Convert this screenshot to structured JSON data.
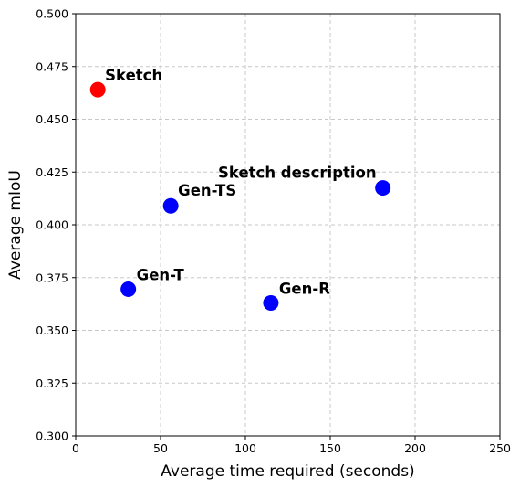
{
  "chart_data": {
    "type": "scatter",
    "title": "",
    "xlabel": "Average time required (seconds)",
    "ylabel": "Average mIoU",
    "xlim": [
      0,
      250
    ],
    "ylim": [
      0.3,
      0.5
    ],
    "xticks": [
      "0",
      "50",
      "100",
      "150",
      "200",
      "250"
    ],
    "yticks": [
      "0.300",
      "0.325",
      "0.350",
      "0.375",
      "0.400",
      "0.425",
      "0.450",
      "0.475",
      "0.500"
    ],
    "grid": true,
    "grid_style": "dashed",
    "points": [
      {
        "label": "Sketch",
        "x": 13,
        "y": 0.464,
        "color": "#ff0000"
      },
      {
        "label": "Sketch description",
        "x": 181,
        "y": 0.4175,
        "color": "#0000ff"
      },
      {
        "label": "Gen-TS",
        "x": 56,
        "y": 0.409,
        "color": "#0000ff"
      },
      {
        "label": "Gen-T",
        "x": 31,
        "y": 0.3695,
        "color": "#0000ff"
      },
      {
        "label": "Gen-R",
        "x": 115,
        "y": 0.363,
        "color": "#0000ff"
      }
    ]
  }
}
